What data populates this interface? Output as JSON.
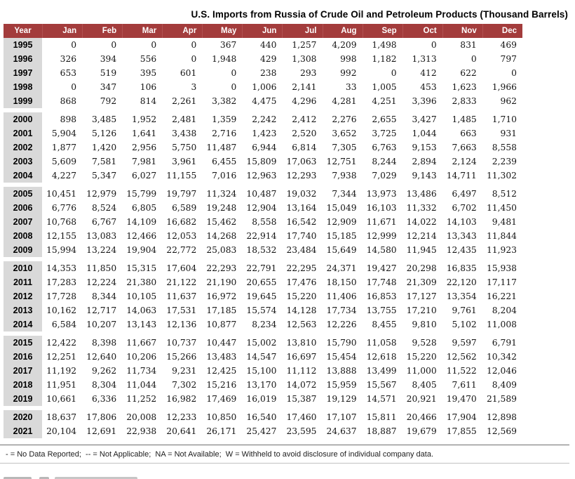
{
  "page": {
    "title": "U.S. Imports from Russia of Crude Oil and Petroleum Products (Thousand Barrels)",
    "footnote": "- = No Data Reported;  -- = Not Applicable;  NA = Not Available;  W = Withheld to avoid disclosure of individual company data."
  },
  "chart_data": {
    "type": "table",
    "title": "U.S. Imports from Russia of Crude Oil and Petroleum Products (Thousand Barrels)",
    "unit": "Thousand Barrels",
    "columns": [
      "Year",
      "Jan",
      "Feb",
      "Mar",
      "Apr",
      "May",
      "Jun",
      "Jul",
      "Aug",
      "Sep",
      "Oct",
      "Nov",
      "Dec"
    ],
    "header_bg": "#a33c3c",
    "year_col_bg": "#d9d9d9",
    "row_groups": [
      {
        "rows": [
          {
            "year": "1995",
            "values": [
              "0",
              "0",
              "0",
              "0",
              "367",
              "440",
              "1,257",
              "4,209",
              "1,498",
              "0",
              "831",
              "469"
            ]
          },
          {
            "year": "1996",
            "values": [
              "326",
              "394",
              "556",
              "0",
              "1,948",
              "429",
              "1,308",
              "998",
              "1,182",
              "1,313",
              "0",
              "797"
            ]
          },
          {
            "year": "1997",
            "values": [
              "653",
              "519",
              "395",
              "601",
              "0",
              "238",
              "293",
              "992",
              "0",
              "412",
              "622",
              "0"
            ]
          },
          {
            "year": "1998",
            "values": [
              "0",
              "347",
              "106",
              "3",
              "0",
              "1,006",
              "2,141",
              "33",
              "1,005",
              "453",
              "1,623",
              "1,966"
            ]
          },
          {
            "year": "1999",
            "values": [
              "868",
              "792",
              "814",
              "2,261",
              "3,382",
              "4,475",
              "4,296",
              "4,281",
              "4,251",
              "3,396",
              "2,833",
              "962"
            ]
          }
        ]
      },
      {
        "rows": [
          {
            "year": "2000",
            "values": [
              "898",
              "3,485",
              "1,952",
              "2,481",
              "1,359",
              "2,242",
              "2,412",
              "2,276",
              "2,655",
              "3,427",
              "1,485",
              "1,710"
            ]
          },
          {
            "year": "2001",
            "values": [
              "5,904",
              "5,126",
              "1,641",
              "3,438",
              "2,716",
              "1,423",
              "2,520",
              "3,652",
              "3,725",
              "1,044",
              "663",
              "931"
            ]
          },
          {
            "year": "2002",
            "values": [
              "1,877",
              "1,420",
              "2,956",
              "5,750",
              "11,487",
              "6,944",
              "6,814",
              "7,305",
              "6,763",
              "9,153",
              "7,663",
              "8,558"
            ]
          },
          {
            "year": "2003",
            "values": [
              "5,609",
              "7,581",
              "7,981",
              "3,961",
              "6,455",
              "15,809",
              "17,063",
              "12,751",
              "8,244",
              "2,894",
              "2,124",
              "2,239"
            ]
          },
          {
            "year": "2004",
            "values": [
              "4,227",
              "5,347",
              "6,027",
              "11,155",
              "7,016",
              "12,963",
              "12,293",
              "7,938",
              "7,029",
              "9,143",
              "14,711",
              "11,302"
            ]
          }
        ]
      },
      {
        "rows": [
          {
            "year": "2005",
            "values": [
              "10,451",
              "12,979",
              "15,799",
              "19,797",
              "11,324",
              "10,487",
              "19,032",
              "7,344",
              "13,973",
              "13,486",
              "6,497",
              "8,512"
            ]
          },
          {
            "year": "2006",
            "values": [
              "6,776",
              "8,524",
              "6,805",
              "6,589",
              "19,248",
              "12,904",
              "13,164",
              "15,049",
              "16,103",
              "11,332",
              "6,702",
              "11,450"
            ]
          },
          {
            "year": "2007",
            "values": [
              "10,768",
              "6,767",
              "14,109",
              "16,682",
              "15,462",
              "8,558",
              "16,542",
              "12,909",
              "11,671",
              "14,022",
              "14,103",
              "9,481"
            ]
          },
          {
            "year": "2008",
            "values": [
              "12,155",
              "13,083",
              "12,466",
              "12,053",
              "14,268",
              "22,914",
              "17,740",
              "15,185",
              "12,999",
              "12,214",
              "13,343",
              "11,844"
            ]
          },
          {
            "year": "2009",
            "values": [
              "15,994",
              "13,224",
              "19,904",
              "22,772",
              "25,083",
              "18,532",
              "23,484",
              "15,649",
              "14,580",
              "11,945",
              "12,435",
              "11,923"
            ]
          }
        ]
      },
      {
        "rows": [
          {
            "year": "2010",
            "values": [
              "14,353",
              "11,850",
              "15,315",
              "17,604",
              "22,293",
              "22,791",
              "22,295",
              "24,371",
              "19,427",
              "20,298",
              "16,835",
              "15,938"
            ]
          },
          {
            "year": "2011",
            "values": [
              "17,283",
              "12,224",
              "21,380",
              "21,122",
              "21,190",
              "20,655",
              "17,476",
              "18,150",
              "17,748",
              "21,309",
              "22,120",
              "17,117"
            ]
          },
          {
            "year": "2012",
            "values": [
              "17,728",
              "8,344",
              "10,105",
              "11,637",
              "16,972",
              "19,645",
              "15,220",
              "11,406",
              "16,853",
              "17,127",
              "13,354",
              "16,221"
            ]
          },
          {
            "year": "2013",
            "values": [
              "10,162",
              "12,717",
              "14,063",
              "17,531",
              "17,185",
              "15,574",
              "14,128",
              "17,734",
              "13,755",
              "17,210",
              "9,761",
              "8,204"
            ]
          },
          {
            "year": "2014",
            "values": [
              "6,584",
              "10,207",
              "13,143",
              "12,136",
              "10,877",
              "8,234",
              "12,563",
              "12,226",
              "8,455",
              "9,810",
              "5,102",
              "11,008"
            ]
          }
        ]
      },
      {
        "rows": [
          {
            "year": "2015",
            "values": [
              "12,422",
              "8,398",
              "11,667",
              "10,737",
              "10,447",
              "15,002",
              "13,810",
              "15,790",
              "11,058",
              "9,528",
              "9,597",
              "6,791"
            ]
          },
          {
            "year": "2016",
            "values": [
              "12,251",
              "12,640",
              "10,206",
              "15,266",
              "13,483",
              "14,547",
              "16,697",
              "15,454",
              "12,618",
              "15,220",
              "12,562",
              "10,342"
            ]
          },
          {
            "year": "2017",
            "values": [
              "11,192",
              "9,262",
              "11,734",
              "9,231",
              "12,425",
              "15,100",
              "11,112",
              "13,888",
              "13,499",
              "11,000",
              "11,522",
              "12,046"
            ]
          },
          {
            "year": "2018",
            "values": [
              "11,951",
              "8,304",
              "11,044",
              "7,302",
              "15,216",
              "13,170",
              "14,072",
              "15,959",
              "15,567",
              "8,405",
              "7,611",
              "8,409"
            ]
          },
          {
            "year": "2019",
            "values": [
              "10,661",
              "6,336",
              "11,252",
              "16,982",
              "17,469",
              "16,019",
              "15,387",
              "19,129",
              "14,571",
              "20,921",
              "19,470",
              "21,589"
            ]
          }
        ]
      },
      {
        "rows": [
          {
            "year": "2020",
            "values": [
              "18,637",
              "17,806",
              "20,008",
              "12,233",
              "10,850",
              "16,540",
              "17,460",
              "17,107",
              "15,811",
              "20,466",
              "17,904",
              "12,898"
            ]
          },
          {
            "year": "2021",
            "values": [
              "20,104",
              "12,691",
              "22,938",
              "20,641",
              "26,171",
              "25,427",
              "23,595",
              "24,637",
              "18,887",
              "19,679",
              "17,855",
              "12,569"
            ]
          }
        ]
      }
    ]
  }
}
